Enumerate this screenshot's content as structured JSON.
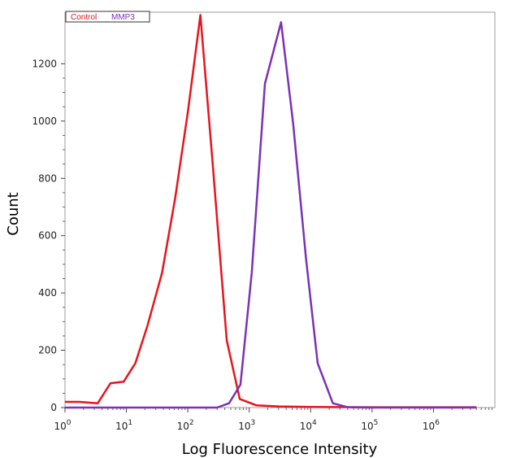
{
  "chart_data": {
    "type": "line",
    "xlabel": "Log Fluorescence Intensity",
    "ylabel": "Count",
    "x_scale": "log10",
    "xlim": [
      1,
      10000000
    ],
    "ylim": [
      0,
      1380
    ],
    "x_ticks": [
      {
        "base": "10",
        "exp": "0",
        "value": 1
      },
      {
        "base": "10",
        "exp": "1",
        "value": 10
      },
      {
        "base": "10",
        "exp": "2",
        "value": 100
      },
      {
        "base": "10",
        "exp": "3",
        "value": 1000
      },
      {
        "base": "10",
        "exp": "4",
        "value": 10000
      },
      {
        "base": "10",
        "exp": "5",
        "value": 100000
      },
      {
        "base": "10",
        "exp": "6",
        "value": 1000000
      }
    ],
    "y_ticks": [
      "0",
      "200",
      "400",
      "600",
      "800",
      "1000",
      "1200"
    ],
    "grid": false,
    "legend_position": "top-left",
    "series": [
      {
        "name": "Control",
        "color": "#e8141c",
        "points": [
          [
            1,
            20
          ],
          [
            1.7,
            20
          ],
          [
            3.4,
            15
          ],
          [
            5.5,
            85
          ],
          [
            9,
            90
          ],
          [
            14,
            155
          ],
          [
            22,
            285
          ],
          [
            38,
            470
          ],
          [
            62,
            730
          ],
          [
            100,
            1030
          ],
          [
            160,
            1370
          ],
          [
            250,
            870
          ],
          [
            430,
            235
          ],
          [
            700,
            30
          ],
          [
            1300,
            8
          ],
          [
            3000,
            4
          ],
          [
            10000,
            2
          ],
          [
            100000,
            1
          ],
          [
            1000000,
            1
          ],
          [
            5000000,
            1
          ]
        ]
      },
      {
        "name": "MMP3",
        "color": "#7b31b8",
        "points": [
          [
            1,
            0
          ],
          [
            10,
            0
          ],
          [
            100,
            0
          ],
          [
            300,
            0
          ],
          [
            470,
            15
          ],
          [
            720,
            80
          ],
          [
            1100,
            470
          ],
          [
            1800,
            1130
          ],
          [
            3300,
            1345
          ],
          [
            5200,
            990
          ],
          [
            8400,
            520
          ],
          [
            13000,
            155
          ],
          [
            23000,
            15
          ],
          [
            40000,
            1
          ],
          [
            100000,
            0
          ],
          [
            1000000,
            0
          ],
          [
            5000000,
            0
          ]
        ]
      }
    ]
  }
}
